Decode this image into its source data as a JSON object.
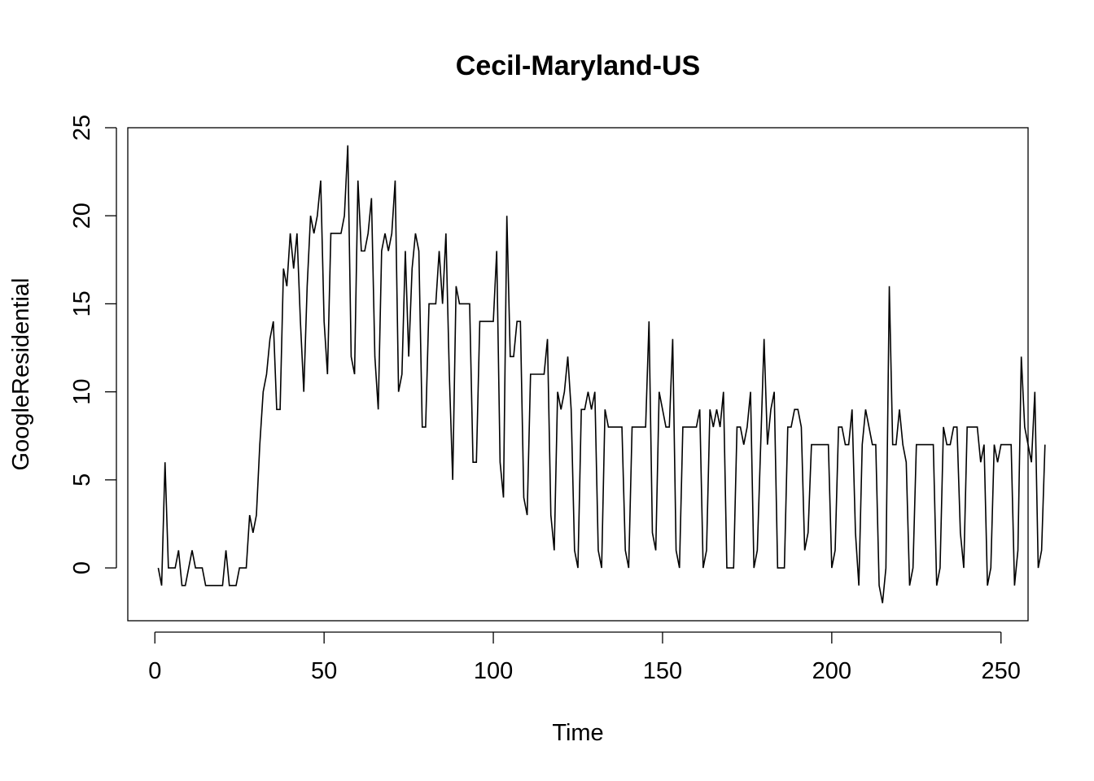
{
  "chart_data": {
    "type": "line",
    "title": "Cecil-Maryland-US",
    "xlabel": "Time",
    "ylabel": "GoogleResidential",
    "xlim": [
      -8,
      258
    ],
    "ylim": [
      -3,
      25
    ],
    "x_ticks": [
      0,
      50,
      100,
      150,
      200,
      250
    ],
    "y_ticks": [
      0,
      5,
      10,
      15,
      20,
      25
    ],
    "grid": false,
    "legend": "none",
    "line_color": "#000000",
    "x_start": 1,
    "series": [
      {
        "values": [
          0,
          -1,
          6,
          0,
          0,
          0,
          1,
          -1,
          -1,
          0,
          1,
          0,
          0,
          0,
          -1,
          -1,
          -1,
          -1,
          -1,
          -1,
          1,
          -1,
          -1,
          -1,
          0,
          0,
          0,
          3,
          2,
          3,
          7,
          10,
          11,
          13,
          14,
          9,
          9,
          17,
          16,
          19,
          17,
          19,
          14,
          10,
          16,
          20,
          19,
          20,
          22,
          14,
          11,
          19,
          19,
          19,
          19,
          20,
          24,
          12,
          11,
          22,
          18,
          18,
          19,
          21,
          12,
          9,
          18,
          19,
          18,
          19,
          22,
          10,
          11,
          18,
          12,
          17,
          19,
          18,
          8,
          8,
          15,
          15,
          15,
          18,
          15,
          19,
          11,
          5,
          16,
          15,
          15,
          15,
          15,
          6,
          6,
          14,
          14,
          14,
          14,
          14,
          18,
          6,
          4,
          20,
          12,
          12,
          14,
          14,
          4,
          3,
          11,
          11,
          11,
          11,
          11,
          13,
          3,
          1,
          10,
          9,
          10,
          12,
          9,
          1,
          0,
          9,
          9,
          10,
          9,
          10,
          1,
          0,
          9,
          8,
          8,
          8,
          8,
          8,
          1,
          0,
          8,
          8,
          8,
          8,
          8,
          14,
          2,
          1,
          10,
          9,
          8,
          8,
          13,
          1,
          0,
          8,
          8,
          8,
          8,
          8,
          9,
          0,
          1,
          9,
          8,
          9,
          8,
          10,
          0,
          0,
          0,
          8,
          8,
          7,
          8,
          10,
          0,
          1,
          7,
          13,
          7,
          9,
          10,
          0,
          0,
          0,
          8,
          8,
          9,
          9,
          8,
          1,
          2,
          7,
          7,
          7,
          7,
          7,
          7,
          0,
          1,
          8,
          8,
          7,
          7,
          9,
          2,
          -1,
          7,
          9,
          8,
          7,
          7,
          -1,
          -2,
          0,
          16,
          7,
          7,
          9,
          7,
          6,
          -1,
          0,
          7,
          7,
          7,
          7,
          7,
          7,
          -1,
          0,
          8,
          7,
          7,
          8,
          8,
          2,
          0,
          8,
          8,
          8,
          8,
          6,
          7,
          -1,
          0,
          7,
          6,
          7,
          7,
          7,
          7,
          -1,
          1,
          12,
          8,
          7,
          6,
          10,
          0,
          1,
          7
        ]
      }
    ]
  }
}
